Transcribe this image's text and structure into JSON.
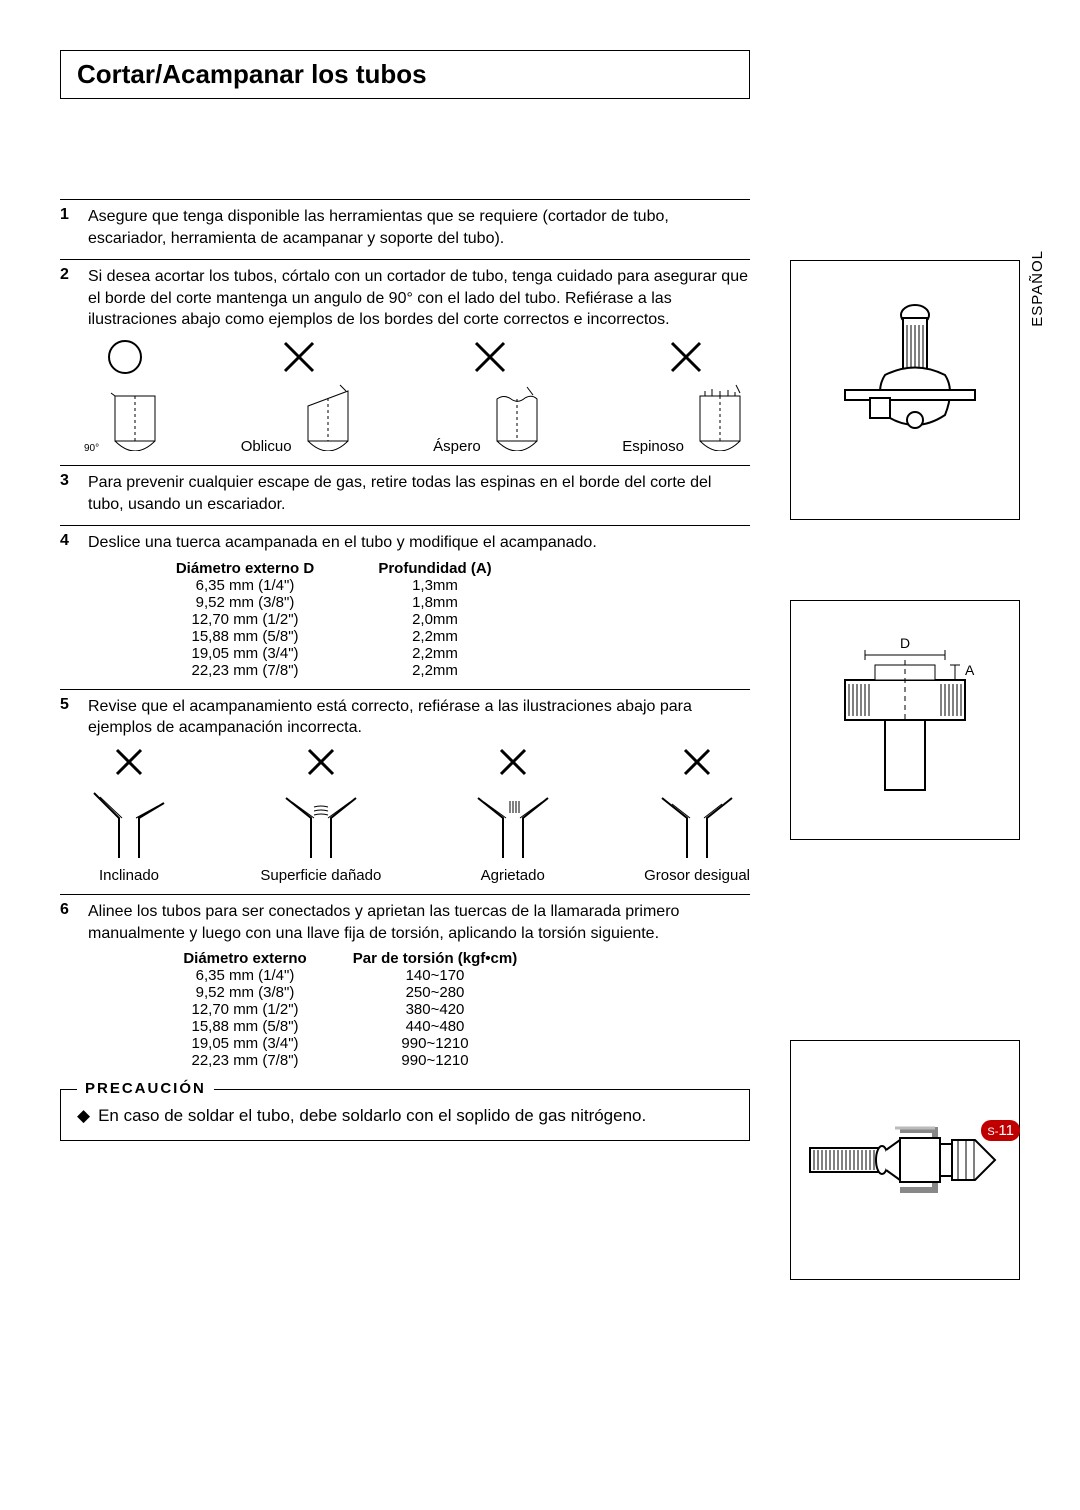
{
  "title": "Cortar/Acampanar los tubos",
  "side_lang": "ESPAÑOL",
  "steps": {
    "s1": {
      "num": "1",
      "text": "Asegure que tenga disponible las herramientas que se requiere (cortador de tubo, escariador, herramienta de acampanar y soporte del tubo)."
    },
    "s2": {
      "num": "2",
      "text": "Si desea acortar los tubos, córtalo con un cortador de tubo, tenga cuidado para asegurar que el borde del corte mantenga un angulo de 90° con el lado del tubo. Refiérase a las ilustraciones abajo como ejemplos de los bordes del corte correctos e incorrectos."
    },
    "s3": {
      "num": "3",
      "text": "Para prevenir cualquier escape de gas, retire todas las espinas en el borde del corte del tubo, usando un escariador."
    },
    "s4": {
      "num": "4",
      "text": "Deslice una tuerca acampanada en el tubo y modifique el acampanado."
    },
    "s5": {
      "num": "5",
      "text": "Revise que el acampanamiento está correcto, refiérase a las ilustraciones abajo para ejemplos de acampanación incorrecta."
    },
    "s6": {
      "num": "6",
      "text": "Alinee los tubos para ser conectados y aprietan las tuercas de la llamarada primero manualmente y luego con una llave fija de torsión, aplicando la torsión siguiente."
    }
  },
  "cut_labels": {
    "deg": "90°",
    "oblicuo": "Oblicuo",
    "aspero": "Áspero",
    "espinoso": "Espinoso"
  },
  "table1": {
    "h1": "Diámetro externo D",
    "h2": "Profundidad (A)",
    "rows": [
      [
        "6,35 mm (1/4\")",
        "1,3mm"
      ],
      [
        "9,52 mm (3/8\")",
        "1,8mm"
      ],
      [
        "12,70 mm (1/2\")",
        "2,0mm"
      ],
      [
        "15,88 mm (5/8\")",
        "2,2mm"
      ],
      [
        "19,05 mm (3/4\")",
        "2,2mm"
      ],
      [
        "22,23 mm (7/8\")",
        "2,2mm"
      ]
    ]
  },
  "flare_labels": {
    "inclinado": "Inclinado",
    "danado": "Superficie dañado",
    "agrietado": "Agrietado",
    "desigual": "Grosor desigual"
  },
  "table2": {
    "h1": "Diámetro externo",
    "h2": "Par de torsión (kgf•cm)",
    "rows": [
      [
        "6,35 mm (1/4\")",
        "140~170"
      ],
      [
        "9,52 mm (3/8\")",
        "250~280"
      ],
      [
        "12,70 mm (1/2\")",
        "380~420"
      ],
      [
        "15,88 mm (5/8\")",
        "440~480"
      ],
      [
        "19,05 mm (3/4\")",
        "990~1210"
      ],
      [
        "22,23 mm (7/8\")",
        "990~1210"
      ]
    ]
  },
  "caution": {
    "legend": "PRECAUCIÓN",
    "bullet": "◆",
    "text": "En caso de soldar el tubo, debe soldarlo con el soplido de gas nitrógeno."
  },
  "side_labels": {
    "D": "D",
    "A": "A"
  },
  "page_num": {
    "prefix": "S-",
    "num": "11"
  },
  "colors": {
    "accent": "#c00000"
  }
}
